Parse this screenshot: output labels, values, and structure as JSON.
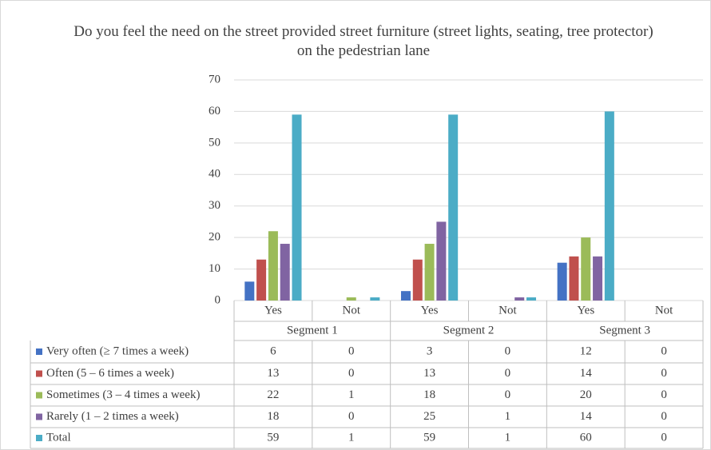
{
  "chart_data": {
    "type": "bar",
    "title": "Do you feel the need on the street provided street furniture (street lights, seating, tree protector) on the pedestrian lane",
    "categories": [
      "Yes",
      "Not",
      "Yes",
      "Not",
      "Yes",
      "Not"
    ],
    "groups": [
      "Segment 1",
      "Segment 2",
      "Segment 3"
    ],
    "series": [
      {
        "name": "Very often (≥ 7 times a week)",
        "color": "#4472c4",
        "values": [
          6,
          0,
          3,
          0,
          12,
          0
        ]
      },
      {
        "name": "Often (5 – 6 times a week)",
        "color": "#c0504d",
        "values": [
          13,
          0,
          13,
          0,
          14,
          0
        ]
      },
      {
        "name": "Sometimes (3 – 4 times a week)",
        "color": "#9bbb59",
        "values": [
          22,
          1,
          18,
          0,
          20,
          0
        ]
      },
      {
        "name": "Rarely (1 – 2 times a week)",
        "color": "#8064a2",
        "values": [
          18,
          0,
          25,
          1,
          14,
          0
        ]
      },
      {
        "name": "Total",
        "color": "#4bacc6",
        "values": [
          59,
          1,
          59,
          1,
          60,
          0
        ]
      }
    ],
    "ylim": [
      0,
      70
    ],
    "yticks": [
      0,
      10,
      20,
      30,
      40,
      50,
      60,
      70
    ],
    "grid": true,
    "data_table": true
  }
}
